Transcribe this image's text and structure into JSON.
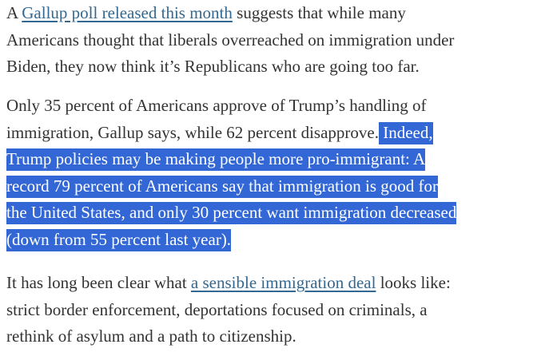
{
  "article": {
    "p1": {
      "line1": {
        "before": "A ",
        "link": "Gallup poll released this month",
        "after": " suggests that while many"
      },
      "line2": "Americans thought that liberals overreached on immigration under",
      "line3": "Biden, they now think it’s Republicans who are going too far."
    },
    "p2": {
      "line1": "Only 35 percent of Americans approve of Trump’s handling of",
      "line2": {
        "plain": "immigration, Gallup says, while 62 percent disapprove.",
        "selected": " Indeed,"
      },
      "line3": "Trump policies may be making people more pro-immigrant: A",
      "line4": "record 79 percent of Americans say that immigration is good for",
      "line5": "the United States, and only 30 percent want immigration decreased",
      "line6": "(down from 55 percent last year)."
    },
    "p3": {
      "line1": {
        "before": "It has long been clear what ",
        "link": "a sensible immigration deal",
        "after": " looks like:"
      },
      "line2": "strict border enforcement, deportations focused on criminals, a",
      "line3": "rethink of asylum and a path to citizenship."
    }
  },
  "colors": {
    "text": "#333333",
    "link": "#326891",
    "selection": "#3367d6"
  }
}
